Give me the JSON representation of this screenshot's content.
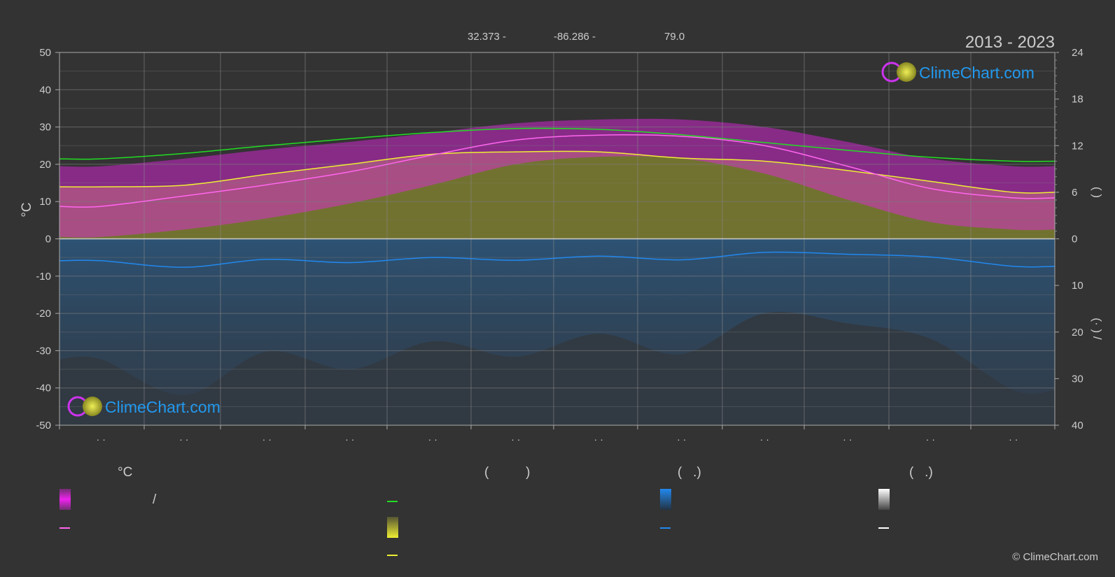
{
  "header": {
    "lat": "32.373 -",
    "lon": "-86.286 -",
    "elev": "79.0",
    "years": "2013 - 2023"
  },
  "watermark": {
    "text": "ClimeChart.com"
  },
  "copyright": "© ClimeChart.com",
  "colors": {
    "background": "#333333",
    "daylight": "#22dd22",
    "sunshine": "#eeee33",
    "temp_mean": "#ff66ee",
    "temp_band": "#ee22ee",
    "precip": "#2288ee",
    "snow": "#ffffff",
    "grid": "#666666"
  },
  "chart_data": {
    "type": "area",
    "categories": [
      "· ·",
      "· ·",
      "· ·",
      "· ·",
      "· ·",
      "· ·",
      "· ·",
      "· ·",
      "· ·",
      "· ·",
      "· ·",
      "· ·"
    ],
    "y_left": {
      "label": "°C",
      "ylim": [
        -50,
        50
      ],
      "ticks": [
        50,
        40,
        30,
        20,
        10,
        0,
        -10,
        -20,
        -30,
        -40,
        -50
      ]
    },
    "y_right_top": {
      "label": "(  )",
      "ylim": [
        0,
        24
      ],
      "ticks": [
        24,
        18,
        12,
        6,
        0
      ]
    },
    "y_right_bottom": {
      "label": "(·  ) /",
      "ylim": [
        0,
        40
      ],
      "ticks": [
        10,
        20,
        30,
        40
      ]
    },
    "grid": true,
    "series": [
      {
        "key": "daylight",
        "axis": "hours",
        "values": [
          10.3,
          11.0,
          12.0,
          12.9,
          13.7,
          14.2,
          14.1,
          13.4,
          12.4,
          11.4,
          10.5,
          10.0
        ]
      },
      {
        "key": "sunshine",
        "axis": "hours",
        "values": [
          6.7,
          6.9,
          8.3,
          9.6,
          10.9,
          11.2,
          11.2,
          10.4,
          10.0,
          8.8,
          7.4,
          6.0
        ]
      },
      {
        "key": "temp_mean",
        "axis": "temp",
        "values": [
          8.7,
          11.5,
          14.5,
          18.0,
          22.5,
          26.5,
          27.8,
          27.5,
          25.0,
          19.5,
          13.5,
          11.0
        ]
      },
      {
        "key": "temp_max",
        "axis": "temp",
        "values": [
          19.5,
          21.5,
          24.0,
          26.0,
          28.5,
          31.0,
          32.0,
          32.0,
          30.0,
          26.0,
          21.5,
          19.5
        ]
      },
      {
        "key": "temp_min",
        "axis": "temp",
        "values": [
          0.5,
          2.5,
          5.5,
          9.5,
          14.5,
          20.0,
          22.0,
          21.5,
          17.5,
          10.5,
          4.5,
          2.5
        ]
      },
      {
        "key": "precip",
        "axis": "precip",
        "values": [
          4.7,
          6.1,
          4.4,
          5.1,
          4.0,
          4.6,
          3.7,
          4.5,
          2.9,
          3.3,
          3.9,
          5.9
        ]
      }
    ]
  },
  "legend": {
    "col1": {
      "header": "°C",
      "row1": "/",
      "row2": ""
    },
    "col2": {
      "header": "(          )",
      "row1": "",
      "row2": "",
      "row3": ""
    },
    "col3": {
      "header": "(   .)",
      "row1": "",
      "row2": ""
    },
    "col4": {
      "header": "(   .)",
      "row1": "",
      "row2": ""
    }
  }
}
